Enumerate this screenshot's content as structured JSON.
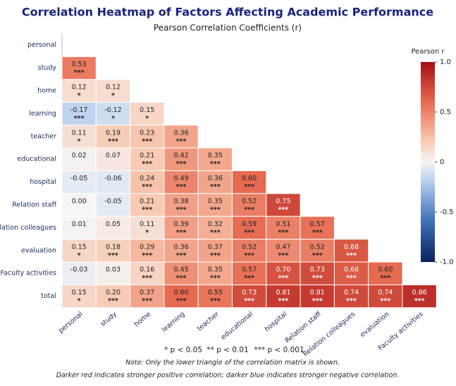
{
  "chart_data": {
    "type": "heatmap",
    "title": "Correlation Heatmap of Factors Affecting Academic Performance",
    "subtitle": "Pearson Correlation Coefficients (r)",
    "rows": [
      "personal",
      "study",
      "home",
      "learning",
      "teacher",
      "educational",
      "hospital",
      "Relation staff",
      "Relation colleagues",
      "evaluation",
      "Faculty activities",
      "total"
    ],
    "columns": [
      "personal",
      "study",
      "home",
      "learning",
      "teacher",
      "educational",
      "hospital",
      "Relation staff",
      "Relation colleagues",
      "evaluation",
      "Faculty activities"
    ],
    "values": [
      [
        null,
        null,
        null,
        null,
        null,
        null,
        null,
        null,
        null,
        null,
        null
      ],
      [
        0.53,
        null,
        null,
        null,
        null,
        null,
        null,
        null,
        null,
        null,
        null
      ],
      [
        0.12,
        0.12,
        null,
        null,
        null,
        null,
        null,
        null,
        null,
        null,
        null
      ],
      [
        -0.17,
        -0.12,
        0.15,
        null,
        null,
        null,
        null,
        null,
        null,
        null,
        null
      ],
      [
        0.11,
        0.19,
        0.23,
        0.36,
        null,
        null,
        null,
        null,
        null,
        null,
        null
      ],
      [
        0.02,
        0.07,
        0.21,
        0.42,
        0.35,
        null,
        null,
        null,
        null,
        null,
        null
      ],
      [
        -0.05,
        -0.06,
        0.24,
        0.49,
        0.36,
        0.6,
        null,
        null,
        null,
        null,
        null
      ],
      [
        0,
        -0.05,
        0.21,
        0.38,
        0.35,
        0.52,
        0.75,
        null,
        null,
        null,
        null
      ],
      [
        0.01,
        0.05,
        0.11,
        0.39,
        0.32,
        0.59,
        0.51,
        0.57,
        null,
        null,
        null
      ],
      [
        0.15,
        0.18,
        0.29,
        0.36,
        0.37,
        0.52,
        0.47,
        0.52,
        0.68,
        null,
        null
      ],
      [
        -0.03,
        0.03,
        0.16,
        0.45,
        0.35,
        0.57,
        0.7,
        0.73,
        0.66,
        0.6,
        null
      ],
      [
        0.15,
        0.2,
        0.37,
        0.6,
        0.55,
        0.73,
        0.81,
        0.81,
        0.74,
        0.74,
        0.86
      ]
    ],
    "value_labels": [
      [
        null,
        null,
        null,
        null,
        null,
        null,
        null,
        null,
        null,
        null,
        null
      ],
      [
        "0.53",
        null,
        null,
        null,
        null,
        null,
        null,
        null,
        null,
        null,
        null
      ],
      [
        "0.12",
        "0.12",
        null,
        null,
        null,
        null,
        null,
        null,
        null,
        null,
        null
      ],
      [
        "-0.17",
        "-0.12",
        "0.15",
        null,
        null,
        null,
        null,
        null,
        null,
        null,
        null
      ],
      [
        "0.11",
        "0.19",
        "0.23",
        "0.36",
        null,
        null,
        null,
        null,
        null,
        null,
        null
      ],
      [
        "0.02",
        "0.07",
        "0.21",
        "0.42",
        "0.35",
        null,
        null,
        null,
        null,
        null,
        null
      ],
      [
        "-0.05",
        "-0.06",
        "0.24",
        "0.49",
        "0.36",
        "0.60",
        null,
        null,
        null,
        null,
        null
      ],
      [
        "0.00",
        "-0.05",
        "0.21",
        "0.38",
        "0.35",
        "0.52",
        "0.75",
        null,
        null,
        null,
        null
      ],
      [
        "0.01",
        "0.05",
        "0.11",
        "0.39",
        "0.32",
        "0.59",
        "0.51",
        "0.57",
        null,
        null,
        null
      ],
      [
        "0.15",
        "0.18",
        "0.29",
        "0.36",
        "0.37",
        "0.52",
        "0.47",
        "0.52",
        "0.68",
        null,
        null
      ],
      [
        "-0.03",
        "0.03",
        "0.16",
        "0.45",
        "0.35",
        "0.57",
        "0.70",
        "0.73",
        "0.66",
        "0.60",
        null
      ],
      [
        "0.15",
        "0.20",
        "0.37",
        "0.60",
        "0.55",
        "0.73",
        "0.81",
        "0.81",
        "0.74",
        "0.74",
        "0.86"
      ]
    ],
    "stars": [
      [
        null,
        null,
        null,
        null,
        null,
        null,
        null,
        null,
        null,
        null,
        null
      ],
      [
        "***",
        null,
        null,
        null,
        null,
        null,
        null,
        null,
        null,
        null,
        null
      ],
      [
        "*",
        "*",
        null,
        null,
        null,
        null,
        null,
        null,
        null,
        null,
        null
      ],
      [
        "***",
        "*",
        "*",
        null,
        null,
        null,
        null,
        null,
        null,
        null,
        null
      ],
      [
        "*",
        "***",
        "***",
        "***",
        null,
        null,
        null,
        null,
        null,
        null,
        null
      ],
      [
        null,
        null,
        "***",
        "***",
        "***",
        null,
        null,
        null,
        null,
        null,
        null
      ],
      [
        null,
        null,
        "***",
        "***",
        "***",
        "***",
        null,
        null,
        null,
        null,
        null
      ],
      [
        null,
        null,
        "***",
        "***",
        "***",
        "***",
        "***",
        null,
        null,
        null,
        null
      ],
      [
        null,
        null,
        "*",
        "***",
        "***",
        "***",
        "***",
        "***",
        null,
        null,
        null
      ],
      [
        "*",
        "***",
        "***",
        "***",
        "***",
        "***",
        "***",
        "***",
        "***",
        null,
        null
      ],
      [
        null,
        null,
        "***",
        "***",
        "***",
        "***",
        "***",
        "***",
        "***",
        "***",
        null
      ],
      [
        "*",
        "***",
        "***",
        "***",
        "***",
        "***",
        "***",
        "***",
        "***",
        "***",
        "***"
      ]
    ],
    "colorbar_label": "Pearson r",
    "clim": [
      -1,
      1
    ],
    "cticks": [
      {
        "value": 1,
        "label": "1.0"
      },
      0.5,
      0,
      -0.5,
      {
        "value": -1,
        "label": "-1.0"
      }
    ],
    "significance_legend": [
      "* p < 0.05",
      "** p < 0.01",
      "*** p < 0.001"
    ],
    "note": "Note: Only the lower triangle of the correlation matrix is shown.",
    "caption": "Darker red indicates stronger positive correlation; darker blue indicates stronger negative correlation."
  }
}
